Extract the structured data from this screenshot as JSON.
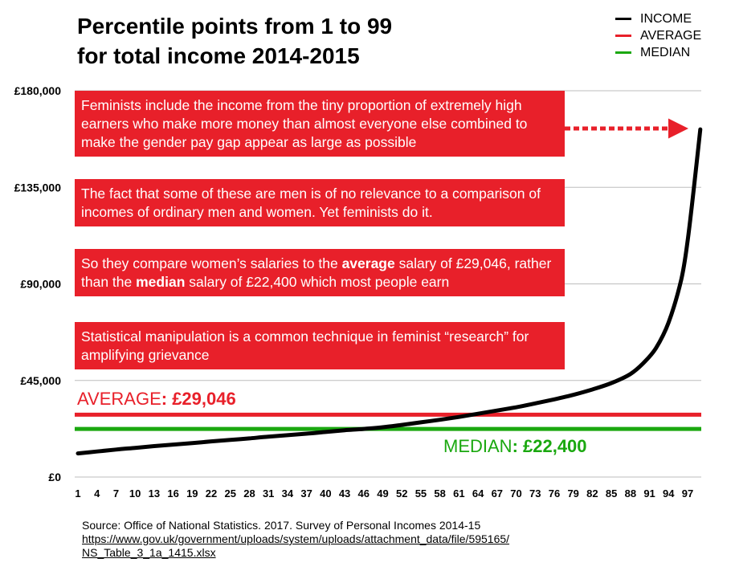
{
  "chart_data": {
    "type": "line",
    "title_line1": "Percentile points from 1 to 99",
    "title_line2": "for total income 2014-2015",
    "legend": [
      {
        "label": "INCOME",
        "color": "#000000"
      },
      {
        "label": "AVERAGE",
        "color": "#e8202a"
      },
      {
        "label": "MEDIAN",
        "color": "#1aa80f"
      }
    ],
    "y_ticks": [
      {
        "value": 0,
        "label": "£0"
      },
      {
        "value": 45000,
        "label": "£45,000"
      },
      {
        "value": 90000,
        "label": "£90,000"
      },
      {
        "value": 135000,
        "label": "£135,000"
      },
      {
        "value": 180000,
        "label": "£180,000"
      }
    ],
    "ylim": [
      0,
      180000
    ],
    "xlim": [
      1,
      99
    ],
    "x_ticks": [
      1,
      4,
      7,
      10,
      13,
      16,
      19,
      22,
      25,
      28,
      31,
      34,
      37,
      40,
      43,
      46,
      49,
      52,
      55,
      58,
      61,
      64,
      67,
      70,
      73,
      76,
      79,
      82,
      85,
      88,
      91,
      94,
      97
    ],
    "grid": true,
    "series": [
      {
        "name": "INCOME",
        "color": "#000000",
        "x": [
          1,
          4,
          7,
          10,
          13,
          16,
          19,
          22,
          25,
          28,
          31,
          34,
          37,
          40,
          43,
          46,
          49,
          52,
          55,
          58,
          61,
          64,
          67,
          70,
          73,
          76,
          79,
          82,
          85,
          88,
          90,
          92,
          94,
          96,
          97,
          98,
          99
        ],
        "values": [
          11000,
          11900,
          12800,
          13600,
          14400,
          15100,
          15800,
          16600,
          17300,
          18000,
          18800,
          19500,
          20200,
          21000,
          21800,
          22400,
          23200,
          24300,
          25500,
          26700,
          28000,
          29500,
          31000,
          32500,
          34300,
          36200,
          38300,
          40800,
          43800,
          48000,
          53000,
          60000,
          72000,
          92000,
          110000,
          135000,
          162000
        ]
      }
    ],
    "reference_lines": [
      {
        "name": "AVERAGE",
        "value": 29046,
        "color": "#e8202a"
      },
      {
        "name": "MEDIAN",
        "value": 22400,
        "color": "#1aa80f"
      }
    ],
    "average_label_prefix": "AVERAGE",
    "average_label_value": ": £29,046",
    "median_label_prefix": "MEDIAN",
    "median_label_value": ": £22,400",
    "annotations": [
      "Feminists include the income from the tiny proportion of extremely high earners who make more money than almost everyone else combined to make the gender pay gap appear as large as possible",
      "The fact that some of these are men is of no relevance to a comparison of incomes of ordinary men and women. Yet feminists do it.",
      "Statistical manipulation is a common technique in feminist “research” for amplifying grievance"
    ],
    "annotation3": {
      "part1": "So they compare women’s salaries to the ",
      "bold1": "average",
      "part2": " salary of £29,046, rather than the ",
      "bold2": "median",
      "part3": " salary of £22,400 which most people earn"
    },
    "source_line": "Source: Office of National Statistics. 2017. Survey of Personal Incomes 2014-15",
    "source_url_line1": "https://www.gov.uk/government/uploads/system/uploads/attachment_data/file/595165/",
    "source_url_line2": "NS_Table_3_1a_1415.xlsx"
  }
}
